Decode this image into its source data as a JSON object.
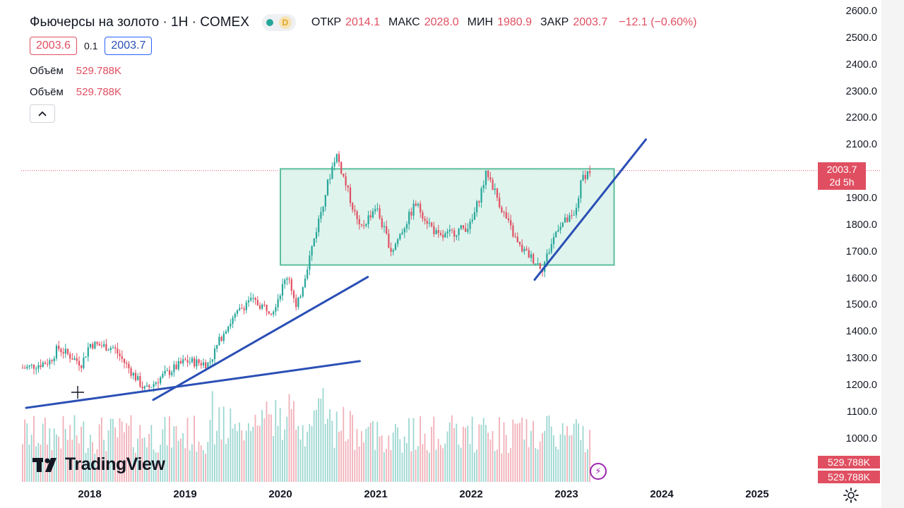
{
  "header": {
    "title": "Фьючерсы на золото · 1Н · COMEX",
    "d_badge": "D",
    "ohlc": [
      {
        "key": "ОТКР",
        "value": "2014.1"
      },
      {
        "key": "МАКС",
        "value": "2028.0"
      },
      {
        "key": "МИН",
        "value": "1980.9"
      },
      {
        "key": "ЗАКР",
        "value": "2003.7"
      }
    ],
    "change": "−12.1 (−0.60%)",
    "sell_price": "2003.6",
    "spread": "0.1",
    "buy_price": "2003.7"
  },
  "volume_rows": [
    {
      "label": "Объём",
      "value": "529.788K"
    },
    {
      "label": "Объём",
      "value": "529.788K"
    }
  ],
  "price_axis": {
    "labels": [
      "2600.0",
      "2500.0",
      "2400.0",
      "2300.0",
      "2200.0",
      "2100.0",
      "1900.0",
      "1800.0",
      "1700.0",
      "1600.0",
      "1500.0",
      "1400.0",
      "1300.0",
      "1200.0",
      "1100.0",
      "1000.0"
    ],
    "last_price": "2003.7",
    "countdown": "2d 5h",
    "volume_tag_1": "529.788K",
    "volume_tag_2": "529.788K"
  },
  "time_axis": {
    "labels": [
      "2018",
      "2019",
      "2020",
      "2021",
      "2022",
      "2023",
      "2024",
      "2025"
    ]
  },
  "branding": {
    "logo_text": "TradingView"
  },
  "colors": {
    "up": "#26a69a",
    "down": "#e04f61",
    "trendline": "#2a4fb5",
    "range_box_fill": "#d9f2ea",
    "range_box_border": "#5cbf9c"
  },
  "icons": {
    "collapse": "chevron-up-icon",
    "settings": "gear-icon",
    "bolt": "lightning-icon",
    "cursor": "crosshair-icon"
  },
  "chart_data": {
    "type": "candlestick",
    "symbol": "Фьючерсы на золото",
    "interval": "1Н",
    "exchange": "COMEX",
    "ylim": [
      950,
      2620
    ],
    "x_range": [
      "2017-05",
      "2025-10"
    ],
    "last_price": 2003.7,
    "weekly_close_path": [
      {
        "date": "2017-05",
        "close": 1265
      },
      {
        "date": "2017-08",
        "close": 1290
      },
      {
        "date": "2017-09",
        "close": 1340
      },
      {
        "date": "2017-12",
        "close": 1280
      },
      {
        "date": "2018-01",
        "close": 1355
      },
      {
        "date": "2018-04",
        "close": 1340
      },
      {
        "date": "2018-06",
        "close": 1260
      },
      {
        "date": "2018-08",
        "close": 1180
      },
      {
        "date": "2018-10",
        "close": 1230
      },
      {
        "date": "2019-01",
        "close": 1290
      },
      {
        "date": "2019-04",
        "close": 1280
      },
      {
        "date": "2019-06",
        "close": 1410
      },
      {
        "date": "2019-09",
        "close": 1520
      },
      {
        "date": "2019-12",
        "close": 1480
      },
      {
        "date": "2020-02",
        "close": 1620
      },
      {
        "date": "2020-03",
        "close": 1480
      },
      {
        "date": "2020-05",
        "close": 1720
      },
      {
        "date": "2020-07",
        "close": 1960
      },
      {
        "date": "2020-08",
        "close": 2070
      },
      {
        "date": "2020-11",
        "close": 1780
      },
      {
        "date": "2021-01",
        "close": 1870
      },
      {
        "date": "2021-03",
        "close": 1700
      },
      {
        "date": "2021-06",
        "close": 1880
      },
      {
        "date": "2021-09",
        "close": 1750
      },
      {
        "date": "2022-01",
        "close": 1800
      },
      {
        "date": "2022-03",
        "close": 2000
      },
      {
        "date": "2022-05",
        "close": 1850
      },
      {
        "date": "2022-07",
        "close": 1720
      },
      {
        "date": "2022-10",
        "close": 1640
      },
      {
        "date": "2022-12",
        "close": 1800
      },
      {
        "date": "2023-02",
        "close": 1830
      },
      {
        "date": "2023-03",
        "close": 1980
      },
      {
        "date": "2023-04",
        "close": 2003.7
      }
    ],
    "annotations": [
      {
        "type": "rectangle",
        "from": "2020-01",
        "to": "2023-07",
        "top": 2010,
        "bottom": 1650
      },
      {
        "type": "trendline",
        "from": {
          "date": "2017-05",
          "price": 1115
        },
        "to": {
          "date": "2020-11",
          "price": 1290
        }
      },
      {
        "type": "trendline",
        "from": {
          "date": "2018-09",
          "price": 1145
        },
        "to": {
          "date": "2020-12",
          "price": 1605
        }
      },
      {
        "type": "trendline",
        "from": {
          "date": "2022-09",
          "price": 1595
        },
        "to": {
          "date": "2023-11",
          "price": 2120
        }
      }
    ]
  }
}
